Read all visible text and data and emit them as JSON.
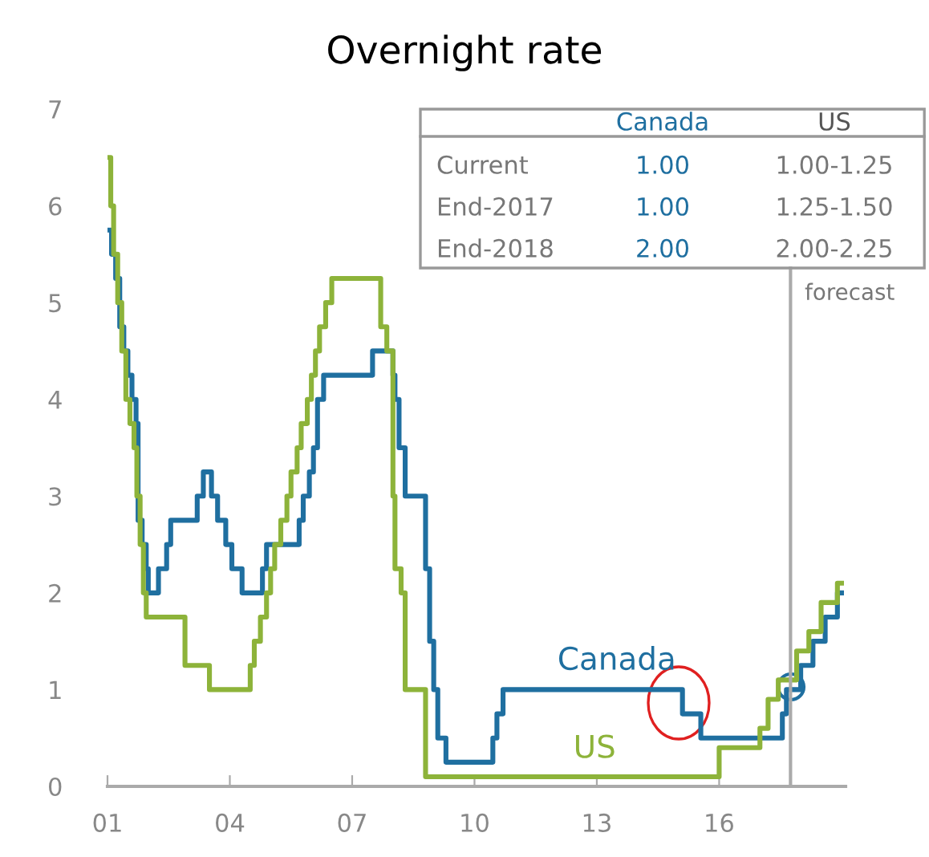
{
  "chart_data": {
    "type": "step",
    "title": "Overnight rate",
    "xlim": [
      2001,
      2019.1
    ],
    "xticks": [
      {
        "value": 2001,
        "label": "01"
      },
      {
        "value": 2004,
        "label": "04"
      },
      {
        "value": 2007,
        "label": "07"
      },
      {
        "value": 2010,
        "label": "10"
      },
      {
        "value": 2013,
        "label": "13"
      },
      {
        "value": 2016,
        "label": "16"
      }
    ],
    "ylim": [
      0,
      7
    ],
    "yticks": [
      0,
      1,
      2,
      3,
      4,
      5,
      6,
      7
    ],
    "grid": false,
    "series": [
      {
        "name": "Canada",
        "color": "#1f6fa0",
        "x": [
          2001.0,
          2001.1,
          2001.2,
          2001.3,
          2001.4,
          2001.5,
          2001.6,
          2001.7,
          2001.75,
          2001.85,
          2001.95,
          2002.0,
          2002.25,
          2002.45,
          2002.55,
          2003.2,
          2003.35,
          2003.55,
          2003.7,
          2003.9,
          2004.05,
          2004.3,
          2004.8,
          2004.9,
          2005.7,
          2005.8,
          2005.95,
          2006.05,
          2006.15,
          2006.3,
          2007.5,
          2008.0,
          2008.05,
          2008.15,
          2008.3,
          2008.8,
          2008.9,
          2009.0,
          2009.1,
          2009.2,
          2009.3,
          2010.45,
          2010.55,
          2010.7,
          2015.1,
          2015.55,
          2017.55,
          2017.65,
          2018.0,
          2018.3,
          2018.6,
          2018.9,
          2019.0
        ],
        "values": [
          5.75,
          5.5,
          5.25,
          4.75,
          4.5,
          4.25,
          4.0,
          3.75,
          2.75,
          2.5,
          2.25,
          2.0,
          2.25,
          2.5,
          2.75,
          3.0,
          3.25,
          3.0,
          2.75,
          2.5,
          2.25,
          2.0,
          2.25,
          2.5,
          2.75,
          3.0,
          3.25,
          3.5,
          4.0,
          4.25,
          4.5,
          4.25,
          4.0,
          3.5,
          3.0,
          2.25,
          1.5,
          1.0,
          0.5,
          0.5,
          0.25,
          0.5,
          0.75,
          1.0,
          0.75,
          0.5,
          0.75,
          1.0,
          1.25,
          1.5,
          1.75,
          2.0,
          2.0
        ]
      },
      {
        "name": "US",
        "color": "#8db33a",
        "x": [
          2001.0,
          2001.08,
          2001.15,
          2001.25,
          2001.35,
          2001.45,
          2001.55,
          2001.65,
          2001.72,
          2001.8,
          2001.88,
          2001.95,
          2002.9,
          2003.5,
          2004.5,
          2004.6,
          2004.75,
          2004.9,
          2005.0,
          2005.1,
          2005.25,
          2005.4,
          2005.5,
          2005.65,
          2005.75,
          2005.9,
          2006.0,
          2006.1,
          2006.2,
          2006.35,
          2006.5,
          2007.7,
          2007.85,
          2008.0,
          2008.05,
          2008.2,
          2008.3,
          2008.8,
          2008.95,
          2016.0,
          2017.0,
          2017.2,
          2017.45,
          2017.9,
          2018.2,
          2018.5,
          2018.9,
          2019.0
        ],
        "values": [
          6.5,
          6.0,
          5.5,
          5.0,
          4.5,
          4.0,
          3.75,
          3.5,
          3.0,
          2.5,
          2.0,
          1.75,
          1.25,
          1.0,
          1.25,
          1.5,
          1.75,
          2.0,
          2.25,
          2.5,
          2.75,
          3.0,
          3.25,
          3.5,
          3.75,
          4.0,
          4.25,
          4.5,
          4.75,
          5.0,
          5.25,
          4.75,
          4.5,
          3.0,
          2.25,
          2.0,
          1.0,
          0.1,
          0.1,
          0.4,
          0.6,
          0.9,
          1.1,
          1.4,
          1.6,
          1.9,
          2.1,
          2.1
        ]
      }
    ],
    "ref_lines": [
      {
        "axis": "x",
        "value": 2017.75,
        "label": "forecast",
        "color": "#aaaaaa"
      }
    ],
    "annotations": [
      "Canada",
      "US",
      "Current",
      "1.00",
      "1.00-1.25",
      "End-2017",
      "1.00",
      "1.25-1.50",
      "End-2018",
      "2.00",
      "2.00-2.25"
    ]
  }
}
